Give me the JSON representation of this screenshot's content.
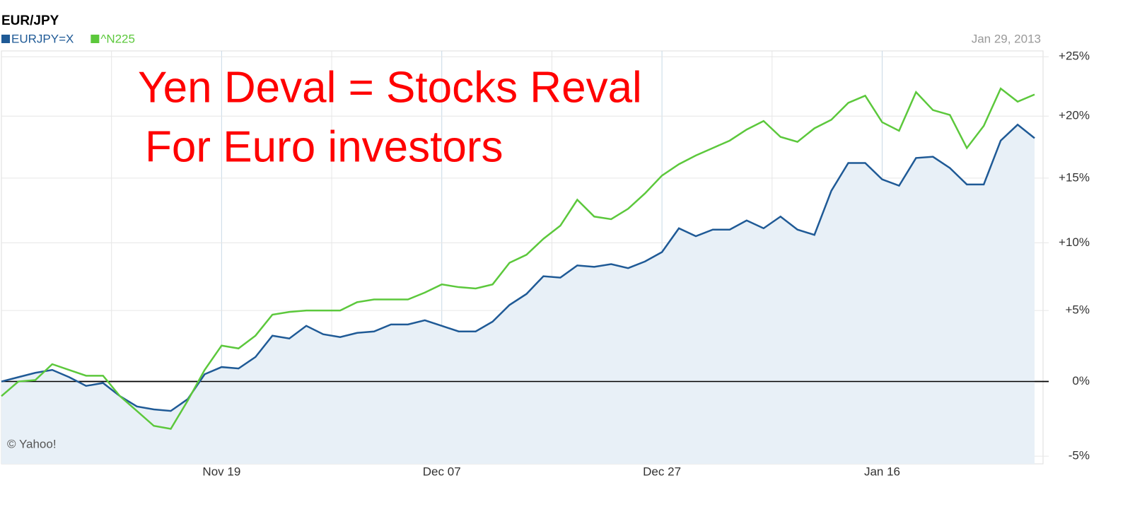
{
  "chart_data": {
    "type": "line",
    "title": "EUR/JPY",
    "date_label": "Jan 29, 2013",
    "annotations": [
      "Yen Deval = Stocks Reval",
      "For Euro investors"
    ],
    "credit": "© Yahoo!",
    "log_scale": true,
    "grid": true,
    "legend": "top-left",
    "xlim": [
      0,
      61.5
    ],
    "xticks": [
      {
        "value": 13,
        "label": "Nov 19"
      },
      {
        "value": 26,
        "label": "Dec 07"
      },
      {
        "value": 39,
        "label": "Dec 27"
      },
      {
        "value": 52,
        "label": "Jan 16"
      }
    ],
    "minor_xticks": [
      6.5,
      19.5,
      32.5,
      45.5
    ],
    "ylim": [
      -5.5,
      25.5
    ],
    "yticks": [
      {
        "value": -5,
        "label": "-5%"
      },
      {
        "value": 0,
        "label": "0%"
      },
      {
        "value": 5,
        "label": "+5%"
      },
      {
        "value": 10,
        "label": "+10%"
      },
      {
        "value": 15,
        "label": "+15%"
      },
      {
        "value": 20,
        "label": "+20%"
      },
      {
        "value": 25,
        "label": "+25%"
      }
    ],
    "series": [
      {
        "name": "EURJPY=X",
        "color": "#1f5a96",
        "area": true,
        "values": [
          0.0,
          0.3,
          0.6,
          0.8,
          0.3,
          -0.3,
          -0.1,
          -1.0,
          -1.7,
          -1.9,
          -2.0,
          -1.2,
          0.5,
          1.0,
          0.9,
          1.7,
          3.2,
          3.0,
          3.9,
          3.3,
          3.1,
          3.4,
          3.5,
          4.0,
          4.0,
          4.3,
          3.9,
          3.5,
          3.5,
          4.2,
          5.4,
          6.2,
          7.5,
          7.4,
          8.3,
          8.2,
          8.4,
          8.1,
          8.6,
          9.3,
          11.1,
          10.5,
          11.0,
          11.0,
          11.7,
          11.1,
          12.0,
          11.0,
          10.6,
          14.0,
          16.2,
          16.2,
          14.9,
          14.4,
          16.6,
          16.7,
          15.8,
          14.5,
          14.5,
          18.0,
          19.3,
          18.2
        ]
      },
      {
        "name": "^N225",
        "color": "#5cc83c",
        "area": false,
        "values": [
          -1.0,
          0.0,
          0.1,
          1.2,
          0.8,
          0.4,
          0.4,
          -1.0,
          -2.0,
          -3.0,
          -3.2,
          -1.3,
          0.8,
          2.5,
          2.3,
          3.2,
          4.7,
          4.9,
          5.0,
          5.0,
          5.0,
          5.6,
          5.8,
          5.8,
          5.8,
          6.3,
          6.9,
          6.7,
          6.6,
          6.9,
          8.5,
          9.1,
          10.3,
          11.3,
          13.3,
          12.0,
          11.8,
          12.6,
          13.8,
          15.2,
          16.1,
          16.8,
          17.4,
          18.0,
          18.9,
          19.6,
          18.3,
          17.9,
          19.0,
          19.7,
          21.1,
          21.7,
          19.5,
          18.8,
          22.0,
          20.5,
          20.1,
          17.4,
          19.2,
          22.3,
          21.2,
          21.8
        ]
      }
    ]
  }
}
